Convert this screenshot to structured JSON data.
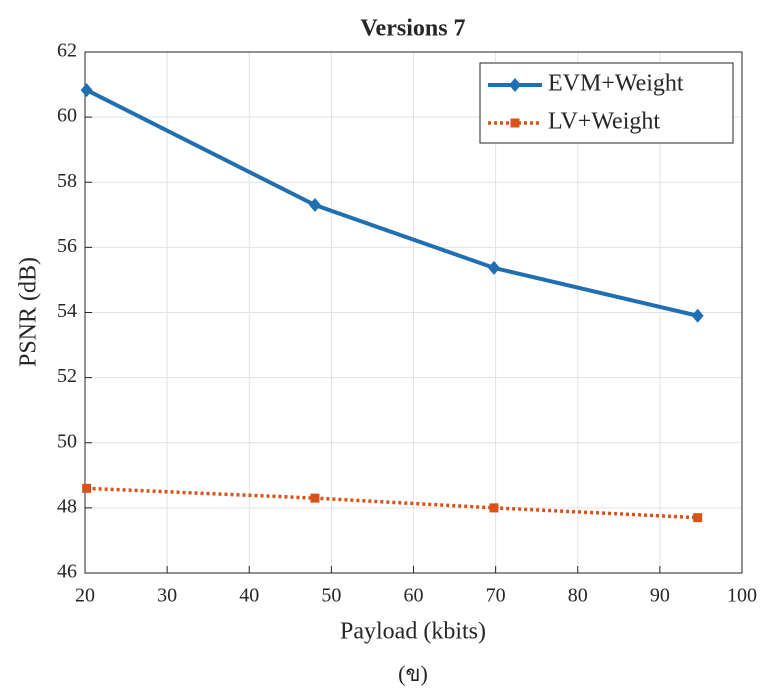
{
  "chart_data": {
    "type": "line",
    "title": "Versions 7",
    "caption": "(ข)",
    "x_label": "Payload (kbits)",
    "y_label": "PSNR (dB)",
    "x": [
      20.2,
      48,
      69.8,
      94.6
    ],
    "series": [
      {
        "name": "EVM+Weight",
        "color": "#1f6fb2",
        "marker": "diamond",
        "dash": "solid",
        "values": [
          60.83,
          57.3,
          55.37,
          53.9
        ]
      },
      {
        "name": "LV+Weight",
        "color": "#d95319",
        "marker": "square",
        "dash": "dotted",
        "values": [
          48.6,
          48.3,
          48.0,
          47.7
        ]
      }
    ],
    "xlim": [
      20,
      100
    ],
    "xticks": [
      20,
      30,
      40,
      50,
      60,
      70,
      80,
      90,
      100
    ],
    "ylim": [
      46,
      62
    ],
    "yticks": [
      46,
      48,
      50,
      52,
      54,
      56,
      58,
      60,
      62
    ],
    "grid": true,
    "legend": "top-right"
  }
}
